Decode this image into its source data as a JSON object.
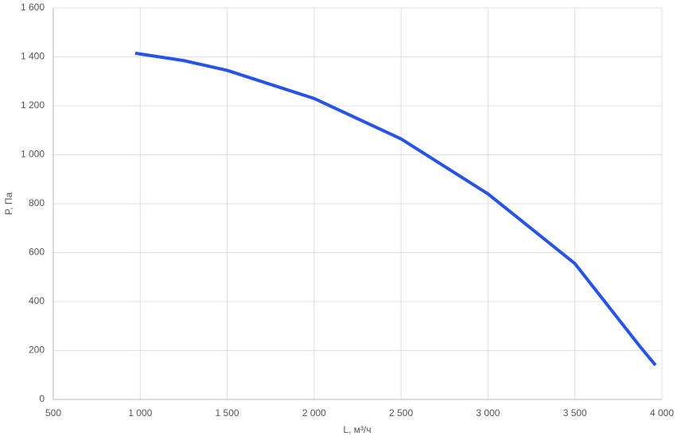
{
  "chart_data": {
    "type": "line",
    "x_label": "L, м³/ч",
    "y_label": "P, Па",
    "x": [
      971,
      1250,
      1500,
      2000,
      2500,
      3000,
      3500,
      3870,
      3963
    ],
    "series": [
      {
        "color": "#2554e6",
        "values": [
          1415,
          1385,
          1345,
          1230,
          1065,
          840,
          555,
          220,
          140
        ]
      }
    ],
    "xlim": [
      500,
      4000
    ],
    "xticks": [
      500,
      {
        "value": 1000,
        "label": "1 000"
      },
      {
        "value": 1500,
        "label": "1 500"
      },
      {
        "value": 2000,
        "label": "2 000"
      },
      {
        "value": 2500,
        "label": "2 500"
      },
      {
        "value": 3000,
        "label": "3 000"
      },
      {
        "value": 3500,
        "label": "3 500"
      },
      {
        "value": 4000,
        "label": "4 000"
      }
    ],
    "ylim": [
      0,
      1600
    ],
    "yticks": [
      0,
      200,
      400,
      600,
      800,
      {
        "value": 1000,
        "label": "1 000"
      },
      {
        "value": 1200,
        "label": "1 200"
      },
      {
        "value": 1400,
        "label": "1 400"
      },
      {
        "value": 1600,
        "label": "1 600"
      }
    ],
    "grid": true
  }
}
